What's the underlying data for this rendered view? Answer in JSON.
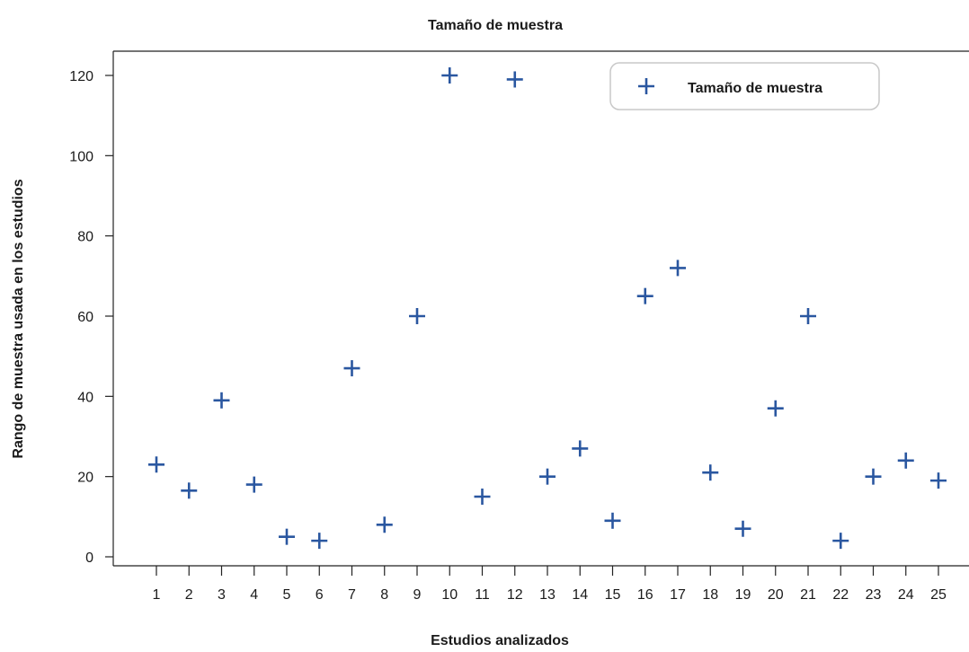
{
  "chart_data": {
    "type": "scatter",
    "title": "Tamaño de muestra",
    "xlabel": "Estudios analizados",
    "ylabel": "Rango de muestra usada en los estudios",
    "x_ticks": [
      "1",
      "2",
      "3",
      "4",
      "5",
      "6",
      "7",
      "8",
      "9",
      "10",
      "11",
      "12",
      "13",
      "14",
      "15",
      "16",
      "17",
      "18",
      "19",
      "20",
      "21",
      "22",
      "23",
      "24",
      "25"
    ],
    "y_ticks": [
      "0",
      "20",
      "40",
      "60",
      "80",
      "100",
      "120"
    ],
    "ylim": [
      0,
      120
    ],
    "xlim": [
      0,
      26
    ],
    "grid": false,
    "legend_position": "top-right",
    "marker": "plus",
    "colors": {
      "series": "#2a57a0",
      "axis": "#222222",
      "legend_border": "#c8c8c8"
    },
    "series": [
      {
        "name": "Tamaño de muestra",
        "x": [
          1,
          2,
          3,
          4,
          5,
          6,
          7,
          8,
          9,
          10,
          11,
          12,
          13,
          14,
          15,
          16,
          17,
          18,
          19,
          20,
          21,
          22,
          23,
          24,
          25
        ],
        "y": [
          23,
          16.5,
          39,
          18,
          5,
          4,
          47,
          8,
          60,
          120,
          15,
          119,
          20,
          27,
          9,
          65,
          72,
          21,
          7,
          37,
          60,
          4,
          20,
          24,
          19
        ]
      }
    ]
  }
}
